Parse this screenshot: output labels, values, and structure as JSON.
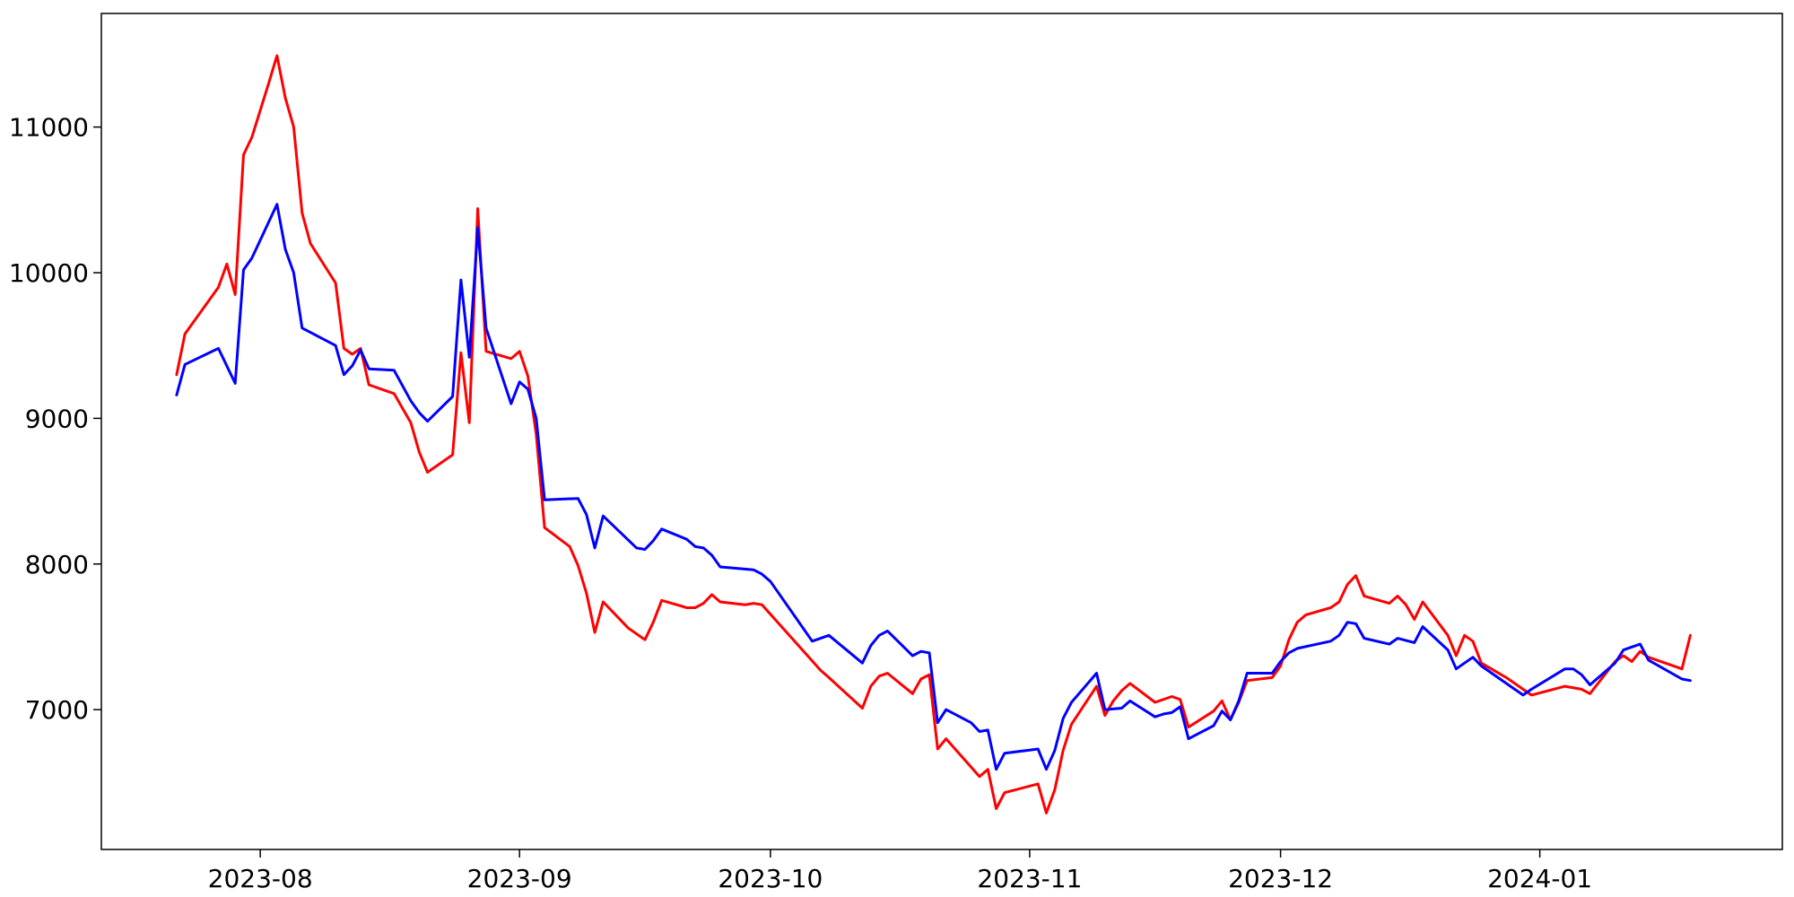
{
  "chart_data": {
    "type": "line",
    "title": "",
    "xlabel": "",
    "ylabel": "",
    "grid": false,
    "x_axis": {
      "type": "date",
      "range": [
        "2023-07-13",
        "2024-01-30"
      ],
      "ticks": [
        {
          "value": "2023-08-01",
          "label": "2023-08"
        },
        {
          "value": "2023-09-01",
          "label": "2023-09"
        },
        {
          "value": "2023-10-01",
          "label": "2023-10"
        },
        {
          "value": "2023-11-01",
          "label": "2023-11"
        },
        {
          "value": "2023-12-01",
          "label": "2023-12"
        },
        {
          "value": "2024-01-01",
          "label": "2024-01"
        }
      ]
    },
    "y_axis": {
      "range": [
        6040,
        11780
      ],
      "ticks": [
        7000,
        8000,
        9000,
        10000,
        11000
      ]
    },
    "series": [
      {
        "color": "#ff0000",
        "points": [
          [
            "2023-07-22",
            9300
          ],
          [
            "2023-07-23",
            9580
          ],
          [
            "2023-07-27",
            9900
          ],
          [
            "2023-07-28",
            10060
          ],
          [
            "2023-07-29",
            9850
          ],
          [
            "2023-07-30",
            10810
          ],
          [
            "2023-07-31",
            10930
          ],
          [
            "2023-08-02",
            11300
          ],
          [
            "2023-08-03",
            11490
          ],
          [
            "2023-08-04",
            11200
          ],
          [
            "2023-08-05",
            11000
          ],
          [
            "2023-08-06",
            10410
          ],
          [
            "2023-08-07",
            10200
          ],
          [
            "2023-08-10",
            9930
          ],
          [
            "2023-08-11",
            9480
          ],
          [
            "2023-08-12",
            9440
          ],
          [
            "2023-08-13",
            9480
          ],
          [
            "2023-08-14",
            9230
          ],
          [
            "2023-08-17",
            9170
          ],
          [
            "2023-08-19",
            8970
          ],
          [
            "2023-08-20",
            8770
          ],
          [
            "2023-08-21",
            8630
          ],
          [
            "2023-08-24",
            8750
          ],
          [
            "2023-08-25",
            9450
          ],
          [
            "2023-08-26",
            8970
          ],
          [
            "2023-08-27",
            10440
          ],
          [
            "2023-08-28",
            9460
          ],
          [
            "2023-08-31",
            9410
          ],
          [
            "2023-09-01",
            9460
          ],
          [
            "2023-09-02",
            9290
          ],
          [
            "2023-09-03",
            8890
          ],
          [
            "2023-09-04",
            8250
          ],
          [
            "2023-09-07",
            8120
          ],
          [
            "2023-09-08",
            7990
          ],
          [
            "2023-09-09",
            7800
          ],
          [
            "2023-09-10",
            7530
          ],
          [
            "2023-09-11",
            7740
          ],
          [
            "2023-09-14",
            7560
          ],
          [
            "2023-09-16",
            7480
          ],
          [
            "2023-09-17",
            7600
          ],
          [
            "2023-09-18",
            7750
          ],
          [
            "2023-09-21",
            7700
          ],
          [
            "2023-09-22",
            7700
          ],
          [
            "2023-09-23",
            7730
          ],
          [
            "2023-09-24",
            7790
          ],
          [
            "2023-09-25",
            7740
          ],
          [
            "2023-09-28",
            7720
          ],
          [
            "2023-09-29",
            7730
          ],
          [
            "2023-09-30",
            7720
          ],
          [
            "2023-10-07",
            7270
          ],
          [
            "2023-10-08",
            7220
          ],
          [
            "2023-10-12",
            7010
          ],
          [
            "2023-10-13",
            7160
          ],
          [
            "2023-10-14",
            7230
          ],
          [
            "2023-10-15",
            7250
          ],
          [
            "2023-10-18",
            7110
          ],
          [
            "2023-10-19",
            7210
          ],
          [
            "2023-10-20",
            7240
          ],
          [
            "2023-10-21",
            6730
          ],
          [
            "2023-10-22",
            6800
          ],
          [
            "2023-10-26",
            6540
          ],
          [
            "2023-10-27",
            6590
          ],
          [
            "2023-10-28",
            6320
          ],
          [
            "2023-10-29",
            6430
          ],
          [
            "2023-11-02",
            6490
          ],
          [
            "2023-11-03",
            6290
          ],
          [
            "2023-11-04",
            6450
          ],
          [
            "2023-11-05",
            6720
          ],
          [
            "2023-11-06",
            6900
          ],
          [
            "2023-11-09",
            7160
          ],
          [
            "2023-11-10",
            6960
          ],
          [
            "2023-11-11",
            7060
          ],
          [
            "2023-11-12",
            7130
          ],
          [
            "2023-11-13",
            7180
          ],
          [
            "2023-11-16",
            7050
          ],
          [
            "2023-11-18",
            7090
          ],
          [
            "2023-11-19",
            7070
          ],
          [
            "2023-11-20",
            6880
          ],
          [
            "2023-11-23",
            6990
          ],
          [
            "2023-11-24",
            7060
          ],
          [
            "2023-11-25",
            6930
          ],
          [
            "2023-11-26",
            7050
          ],
          [
            "2023-11-27",
            7200
          ],
          [
            "2023-11-30",
            7220
          ],
          [
            "2023-12-01",
            7300
          ],
          [
            "2023-12-02",
            7480
          ],
          [
            "2023-12-03",
            7600
          ],
          [
            "2023-12-04",
            7650
          ],
          [
            "2023-12-07",
            7700
          ],
          [
            "2023-12-08",
            7740
          ],
          [
            "2023-12-09",
            7860
          ],
          [
            "2023-12-10",
            7920
          ],
          [
            "2023-12-11",
            7780
          ],
          [
            "2023-12-14",
            7730
          ],
          [
            "2023-12-15",
            7780
          ],
          [
            "2023-12-16",
            7720
          ],
          [
            "2023-12-17",
            7620
          ],
          [
            "2023-12-18",
            7740
          ],
          [
            "2023-12-21",
            7510
          ],
          [
            "2023-12-22",
            7370
          ],
          [
            "2023-12-23",
            7510
          ],
          [
            "2023-12-24",
            7470
          ],
          [
            "2023-12-25",
            7320
          ],
          [
            "2023-12-28",
            7220
          ],
          [
            "2023-12-29",
            7180
          ],
          [
            "2023-12-30",
            7140
          ],
          [
            "2023-12-31",
            7100
          ],
          [
            "2024-01-04",
            7160
          ],
          [
            "2024-01-06",
            7140
          ],
          [
            "2024-01-07",
            7110
          ],
          [
            "2024-01-10",
            7330
          ],
          [
            "2024-01-11",
            7370
          ],
          [
            "2024-01-12",
            7330
          ],
          [
            "2024-01-13",
            7400
          ],
          [
            "2024-01-14",
            7360
          ],
          [
            "2024-01-18",
            7280
          ],
          [
            "2024-01-19",
            7510
          ]
        ]
      },
      {
        "color": "#0000ff",
        "points": [
          [
            "2023-07-22",
            9160
          ],
          [
            "2023-07-23",
            9370
          ],
          [
            "2023-07-27",
            9480
          ],
          [
            "2023-07-29",
            9240
          ],
          [
            "2023-07-30",
            10020
          ],
          [
            "2023-07-31",
            10100
          ],
          [
            "2023-08-03",
            10470
          ],
          [
            "2023-08-04",
            10160
          ],
          [
            "2023-08-05",
            10000
          ],
          [
            "2023-08-06",
            9620
          ],
          [
            "2023-08-10",
            9500
          ],
          [
            "2023-08-11",
            9300
          ],
          [
            "2023-08-12",
            9360
          ],
          [
            "2023-08-13",
            9470
          ],
          [
            "2023-08-14",
            9340
          ],
          [
            "2023-08-17",
            9330
          ],
          [
            "2023-08-19",
            9120
          ],
          [
            "2023-08-20",
            9040
          ],
          [
            "2023-08-21",
            8980
          ],
          [
            "2023-08-24",
            9150
          ],
          [
            "2023-08-25",
            9950
          ],
          [
            "2023-08-26",
            9420
          ],
          [
            "2023-08-27",
            10310
          ],
          [
            "2023-08-28",
            9620
          ],
          [
            "2023-08-31",
            9100
          ],
          [
            "2023-09-01",
            9250
          ],
          [
            "2023-09-02",
            9200
          ],
          [
            "2023-09-03",
            9000
          ],
          [
            "2023-09-04",
            8440
          ],
          [
            "2023-09-08",
            8450
          ],
          [
            "2023-09-09",
            8340
          ],
          [
            "2023-09-10",
            8110
          ],
          [
            "2023-09-11",
            8330
          ],
          [
            "2023-09-15",
            8110
          ],
          [
            "2023-09-16",
            8100
          ],
          [
            "2023-09-17",
            8160
          ],
          [
            "2023-09-18",
            8240
          ],
          [
            "2023-09-21",
            8170
          ],
          [
            "2023-09-22",
            8120
          ],
          [
            "2023-09-23",
            8110
          ],
          [
            "2023-09-24",
            8060
          ],
          [
            "2023-09-25",
            7980
          ],
          [
            "2023-09-29",
            7960
          ],
          [
            "2023-09-30",
            7930
          ],
          [
            "2023-10-01",
            7880
          ],
          [
            "2023-10-06",
            7470
          ],
          [
            "2023-10-08",
            7510
          ],
          [
            "2023-10-12",
            7320
          ],
          [
            "2023-10-13",
            7440
          ],
          [
            "2023-10-14",
            7510
          ],
          [
            "2023-10-15",
            7540
          ],
          [
            "2023-10-18",
            7370
          ],
          [
            "2023-10-19",
            7400
          ],
          [
            "2023-10-20",
            7390
          ],
          [
            "2023-10-21",
            6910
          ],
          [
            "2023-10-22",
            7000
          ],
          [
            "2023-10-25",
            6910
          ],
          [
            "2023-10-26",
            6850
          ],
          [
            "2023-10-27",
            6860
          ],
          [
            "2023-10-28",
            6590
          ],
          [
            "2023-10-29",
            6700
          ],
          [
            "2023-11-02",
            6730
          ],
          [
            "2023-11-03",
            6590
          ],
          [
            "2023-11-04",
            6720
          ],
          [
            "2023-11-05",
            6940
          ],
          [
            "2023-11-06",
            7050
          ],
          [
            "2023-11-09",
            7250
          ],
          [
            "2023-11-10",
            7000
          ],
          [
            "2023-11-12",
            7010
          ],
          [
            "2023-11-13",
            7060
          ],
          [
            "2023-11-16",
            6950
          ],
          [
            "2023-11-17",
            6970
          ],
          [
            "2023-11-18",
            6980
          ],
          [
            "2023-11-19",
            7020
          ],
          [
            "2023-11-20",
            6800
          ],
          [
            "2023-11-23",
            6890
          ],
          [
            "2023-11-24",
            6990
          ],
          [
            "2023-11-25",
            6930
          ],
          [
            "2023-11-26",
            7060
          ],
          [
            "2023-11-27",
            7250
          ],
          [
            "2023-11-30",
            7250
          ],
          [
            "2023-12-01",
            7330
          ],
          [
            "2023-12-02",
            7390
          ],
          [
            "2023-12-03",
            7420
          ],
          [
            "2023-12-07",
            7470
          ],
          [
            "2023-12-08",
            7510
          ],
          [
            "2023-12-09",
            7600
          ],
          [
            "2023-12-10",
            7590
          ],
          [
            "2023-12-11",
            7490
          ],
          [
            "2023-12-14",
            7450
          ],
          [
            "2023-12-15",
            7490
          ],
          [
            "2023-12-17",
            7460
          ],
          [
            "2023-12-18",
            7570
          ],
          [
            "2023-12-21",
            7410
          ],
          [
            "2023-12-22",
            7280
          ],
          [
            "2023-12-24",
            7360
          ],
          [
            "2023-12-25",
            7300
          ],
          [
            "2023-12-28",
            7180
          ],
          [
            "2023-12-30",
            7100
          ],
          [
            "2023-12-31",
            7140
          ],
          [
            "2024-01-04",
            7280
          ],
          [
            "2024-01-05",
            7280
          ],
          [
            "2024-01-06",
            7240
          ],
          [
            "2024-01-07",
            7170
          ],
          [
            "2024-01-10",
            7320
          ],
          [
            "2024-01-11",
            7410
          ],
          [
            "2024-01-13",
            7450
          ],
          [
            "2024-01-14",
            7340
          ],
          [
            "2024-01-18",
            7210
          ],
          [
            "2024-01-19",
            7200
          ]
        ]
      }
    ]
  }
}
